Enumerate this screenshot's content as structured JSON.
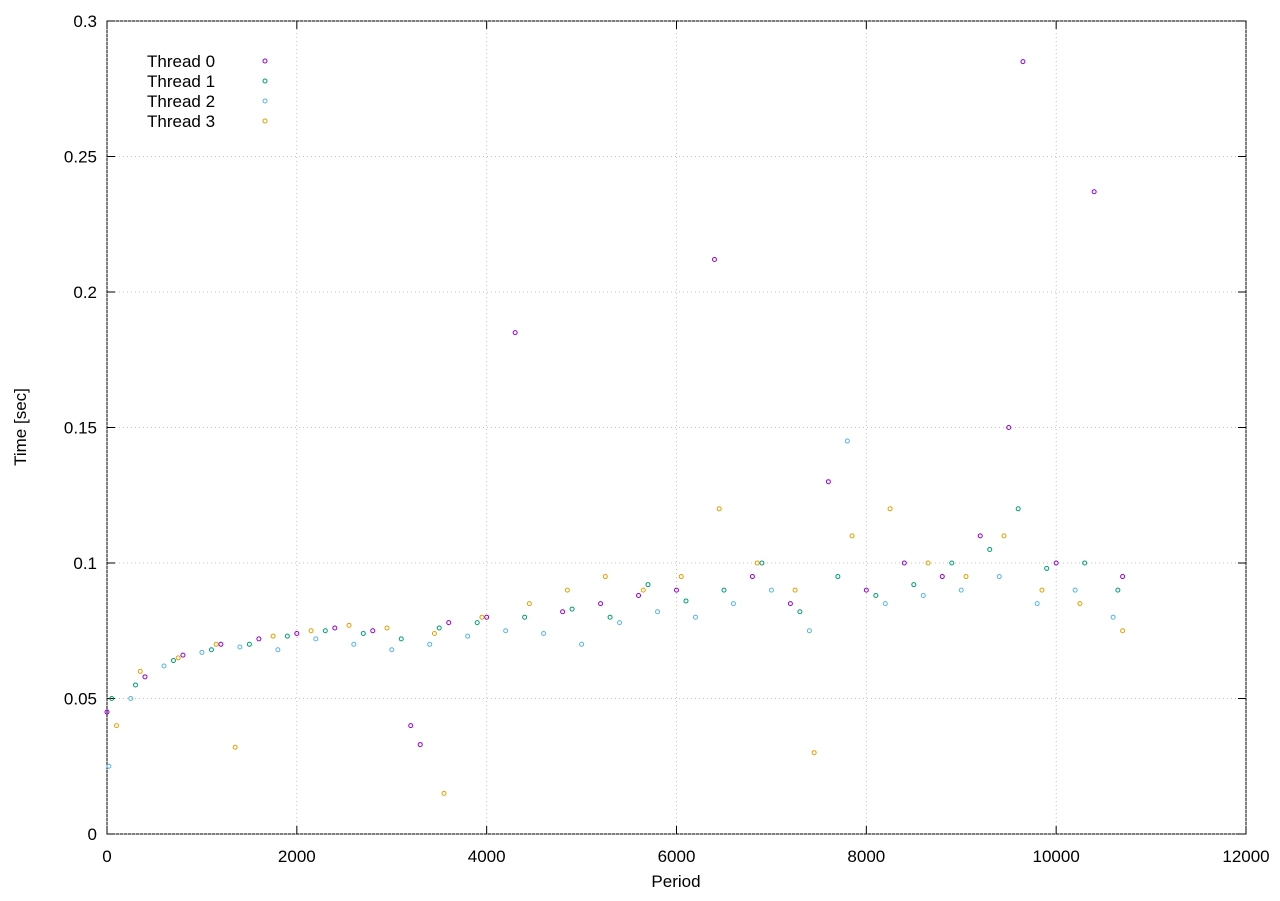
{
  "chart_data": {
    "type": "scatter",
    "xlabel": "Period",
    "ylabel": "Time [sec]",
    "xlim": [
      0,
      12000
    ],
    "ylim": [
      0,
      0.3
    ],
    "xticks": [
      0,
      2000,
      4000,
      6000,
      8000,
      10000,
      12000
    ],
    "yticks": [
      0,
      0.05,
      0.1,
      0.15,
      0.2,
      0.25,
      0.3
    ],
    "grid": true,
    "legend": "upper-left",
    "series": [
      {
        "name": "Thread 0",
        "color": "#9400d3",
        "x": [
          0,
          400,
          800,
          1200,
          1600,
          2000,
          2400,
          2800,
          3200,
          3300,
          3600,
          4000,
          4300,
          4800,
          5200,
          5600,
          6000,
          6400,
          6800,
          7200,
          7600,
          8000,
          8400,
          8800,
          9200,
          9500,
          9650,
          10000,
          10400,
          10700
        ],
        "values": [
          0.045,
          0.058,
          0.066,
          0.07,
          0.072,
          0.074,
          0.076,
          0.075,
          0.04,
          0.033,
          0.078,
          0.08,
          0.185,
          0.082,
          0.085,
          0.088,
          0.09,
          0.212,
          0.095,
          0.085,
          0.13,
          0.09,
          0.1,
          0.095,
          0.11,
          0.15,
          0.285,
          0.1,
          0.237,
          0.095
        ]
      },
      {
        "name": "Thread 1",
        "color": "#009e73",
        "x": [
          50,
          300,
          700,
          1100,
          1500,
          1900,
          2300,
          2700,
          3100,
          3500,
          3900,
          4400,
          4900,
          5300,
          5700,
          6100,
          6500,
          6900,
          7300,
          7700,
          8100,
          8500,
          8900,
          9300,
          9600,
          9900,
          10300,
          10650
        ],
        "values": [
          0.05,
          0.055,
          0.064,
          0.068,
          0.07,
          0.073,
          0.075,
          0.074,
          0.072,
          0.076,
          0.078,
          0.08,
          0.083,
          0.08,
          0.092,
          0.086,
          0.09,
          0.1,
          0.082,
          0.095,
          0.088,
          0.092,
          0.1,
          0.105,
          0.12,
          0.098,
          0.1,
          0.09
        ]
      },
      {
        "name": "Thread 2",
        "color": "#56b4e9",
        "x": [
          20,
          250,
          600,
          1000,
          1400,
          1800,
          2200,
          2600,
          3000,
          3400,
          3800,
          4200,
          4600,
          5000,
          5400,
          5800,
          6200,
          6600,
          7000,
          7400,
          7800,
          8200,
          8600,
          9000,
          9400,
          9800,
          10200,
          10600
        ],
        "values": [
          0.025,
          0.05,
          0.062,
          0.067,
          0.069,
          0.068,
          0.072,
          0.07,
          0.068,
          0.07,
          0.073,
          0.075,
          0.074,
          0.07,
          0.078,
          0.082,
          0.08,
          0.085,
          0.09,
          0.075,
          0.145,
          0.085,
          0.088,
          0.09,
          0.095,
          0.085,
          0.09,
          0.08
        ]
      },
      {
        "name": "Thread 3",
        "color": "#e69f00",
        "x": [
          100,
          350,
          750,
          1150,
          1350,
          1750,
          2150,
          2550,
          2950,
          3450,
          3550,
          3950,
          4450,
          4850,
          5250,
          5650,
          6050,
          6450,
          6850,
          7250,
          7450,
          7850,
          8250,
          8650,
          9050,
          9450,
          9850,
          10250,
          10700
        ],
        "values": [
          0.04,
          0.06,
          0.065,
          0.07,
          0.032,
          0.073,
          0.075,
          0.077,
          0.076,
          0.074,
          0.015,
          0.08,
          0.085,
          0.09,
          0.095,
          0.09,
          0.095,
          0.12,
          0.1,
          0.09,
          0.03,
          0.11,
          0.12,
          0.1,
          0.095,
          0.11,
          0.09,
          0.085,
          0.075
        ]
      }
    ]
  }
}
